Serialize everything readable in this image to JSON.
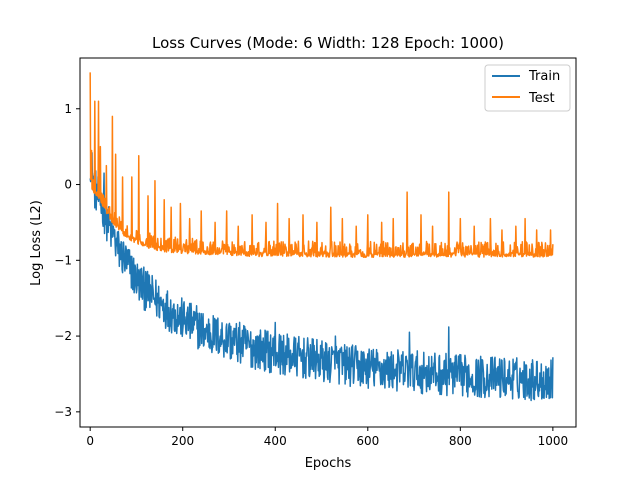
{
  "chart_data": {
    "type": "line",
    "title": "Loss Curves (Mode: 6 Width: 128 Epoch: 1000)",
    "xlabel": "Epochs",
    "ylabel": "Log Loss (L2)",
    "xlim": [
      -22,
      1050
    ],
    "ylim": [
      -3.2,
      1.67
    ],
    "xticks": [
      0,
      200,
      400,
      600,
      800,
      1000
    ],
    "yticks": [
      -3,
      -2,
      -1,
      0,
      1
    ],
    "grid": false,
    "legend_position": "upper right",
    "series": [
      {
        "name": "Train",
        "color": "#1f77b4",
        "trend": {
          "x": [
            0,
            10,
            20,
            30,
            40,
            50,
            60,
            80,
            100,
            120,
            150,
            175,
            200,
            250,
            300,
            350,
            400,
            450,
            500,
            550,
            600,
            650,
            700,
            750,
            800,
            850,
            900,
            950,
            1000
          ],
          "y": [
            0.35,
            -0.05,
            -0.2,
            -0.35,
            -0.55,
            -0.7,
            -0.85,
            -1.05,
            -1.25,
            -1.4,
            -1.55,
            -1.68,
            -1.78,
            -1.95,
            -2.05,
            -2.15,
            -2.22,
            -2.28,
            -2.33,
            -2.38,
            -2.42,
            -2.45,
            -2.47,
            -2.5,
            -2.52,
            -2.54,
            -2.55,
            -2.57,
            -2.58
          ]
        },
        "noise_amplitude": 0.28,
        "spikes": [
          {
            "x": 30,
            "y": 0.15
          },
          {
            "x": 50,
            "y": -0.55
          },
          {
            "x": 90,
            "y": -0.95
          },
          {
            "x": 120,
            "y": -1.15
          },
          {
            "x": 165,
            "y": -1.45
          },
          {
            "x": 230,
            "y": -1.6
          },
          {
            "x": 300,
            "y": -1.85
          },
          {
            "x": 400,
            "y": -1.82
          },
          {
            "x": 530,
            "y": -2.0
          },
          {
            "x": 690,
            "y": -1.95
          },
          {
            "x": 775,
            "y": -1.88
          },
          {
            "x": 1000,
            "y": -2.28
          }
        ]
      },
      {
        "name": "Test",
        "color": "#ff7f0e",
        "trend": {
          "x": [
            0,
            10,
            20,
            30,
            40,
            50,
            60,
            80,
            100,
            120,
            150,
            175,
            200,
            250,
            300,
            350,
            400,
            450,
            500,
            550,
            600,
            650,
            700,
            750,
            800,
            850,
            900,
            950,
            1000
          ],
          "y": [
            -0.05,
            -0.1,
            -0.2,
            -0.3,
            -0.4,
            -0.5,
            -0.58,
            -0.68,
            -0.75,
            -0.8,
            -0.85,
            -0.87,
            -0.88,
            -0.9,
            -0.91,
            -0.92,
            -0.92,
            -0.92,
            -0.93,
            -0.93,
            -0.93,
            -0.93,
            -0.93,
            -0.93,
            -0.93,
            -0.93,
            -0.93,
            -0.93,
            -0.93
          ]
        },
        "noise_amplitude": 0.06,
        "spikes": [
          {
            "x": 0,
            "y": 1.48
          },
          {
            "x": 3,
            "y": 0.45
          },
          {
            "x": 10,
            "y": 1.1
          },
          {
            "x": 18,
            "y": 1.1
          },
          {
            "x": 22,
            "y": 0.5
          },
          {
            "x": 35,
            "y": 0.25
          },
          {
            "x": 48,
            "y": 0.9
          },
          {
            "x": 55,
            "y": 0.4
          },
          {
            "x": 70,
            "y": 0.1
          },
          {
            "x": 90,
            "y": 0.1
          },
          {
            "x": 105,
            "y": 0.38
          },
          {
            "x": 125,
            "y": -0.15
          },
          {
            "x": 140,
            "y": 0.05
          },
          {
            "x": 160,
            "y": -0.2
          },
          {
            "x": 175,
            "y": -0.3
          },
          {
            "x": 195,
            "y": -0.25
          },
          {
            "x": 215,
            "y": -0.45
          },
          {
            "x": 240,
            "y": -0.35
          },
          {
            "x": 270,
            "y": -0.5
          },
          {
            "x": 295,
            "y": -0.35
          },
          {
            "x": 320,
            "y": -0.55
          },
          {
            "x": 350,
            "y": -0.4
          },
          {
            "x": 380,
            "y": -0.5
          },
          {
            "x": 405,
            "y": -0.25
          },
          {
            "x": 430,
            "y": -0.45
          },
          {
            "x": 460,
            "y": -0.4
          },
          {
            "x": 490,
            "y": -0.5
          },
          {
            "x": 520,
            "y": -0.3
          },
          {
            "x": 545,
            "y": -0.45
          },
          {
            "x": 575,
            "y": -0.55
          },
          {
            "x": 600,
            "y": -0.4
          },
          {
            "x": 630,
            "y": -0.5
          },
          {
            "x": 655,
            "y": -0.45
          },
          {
            "x": 685,
            "y": -0.1
          },
          {
            "x": 715,
            "y": -0.4
          },
          {
            "x": 740,
            "y": -0.55
          },
          {
            "x": 775,
            "y": -0.1
          },
          {
            "x": 800,
            "y": -0.45
          },
          {
            "x": 830,
            "y": -0.55
          },
          {
            "x": 865,
            "y": -0.45
          },
          {
            "x": 890,
            "y": -0.6
          },
          {
            "x": 920,
            "y": -0.55
          },
          {
            "x": 940,
            "y": -0.45
          },
          {
            "x": 965,
            "y": -0.6
          },
          {
            "x": 995,
            "y": -0.6
          }
        ]
      }
    ]
  }
}
